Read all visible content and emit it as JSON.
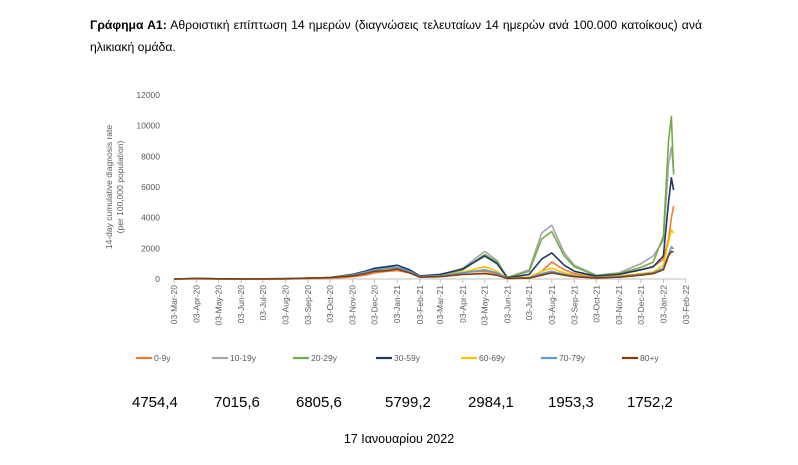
{
  "caption": {
    "label": "Γράφημα Α1:",
    "text": "Αθροιστική επίπτωση 14 ημερών (διαγνώσεις τελευταίων 14 ημερών ανά 100.000 κατοίκους) ανά ηλικιακή ομάδα."
  },
  "stats": [
    "4754,4",
    "7015,6",
    "6805,6",
    "5799,2",
    "2984,1",
    "1953,3",
    "1752,2"
  ],
  "footer": "17 Ιανουαρίου 2022",
  "chart_data": {
    "type": "line",
    "title": "",
    "xlabel": "",
    "ylabel": "14-day cumulative diagnosis rate (per 100,000 population)",
    "ylabel_lines": [
      "14-day cumulative diagnosis rate",
      "(per 100,000 population)"
    ],
    "ylim": [
      0,
      12000
    ],
    "yticks": [
      0,
      2000,
      4000,
      6000,
      8000,
      10000,
      12000
    ],
    "x_tick_labels": [
      "03-Mar-20",
      "03-Apr-20",
      "03-May-20",
      "03-Jun-20",
      "03-Jul-20",
      "03-Aug-20",
      "03-Sep-20",
      "03-Oct-20",
      "03-Nov-20",
      "03-Dec-20",
      "03-Jan-21",
      "03-Feb-21",
      "03-Mar-21",
      "03-Apr-21",
      "03-May-21",
      "03-Jun-21",
      "03-Jul-21",
      "03-Aug-21",
      "03-Sep-21",
      "03-Oct-21",
      "03-Nov-21",
      "03-Dec-21",
      "03-Jan-22",
      "03-Feb-22"
    ],
    "grid": false,
    "legend_position": "bottom",
    "x": [
      "03-Mar-20",
      "03-Apr-20",
      "03-May-20",
      "03-Jun-20",
      "03-Jul-20",
      "03-Aug-20",
      "03-Sep-20",
      "03-Oct-20",
      "03-Nov-20",
      "20-Nov-20",
      "03-Dec-20",
      "20-Dec-20",
      "03-Jan-21",
      "20-Jan-21",
      "03-Feb-21",
      "03-Mar-21",
      "03-Apr-21",
      "03-May-21",
      "20-May-21",
      "03-Jun-21",
      "03-Jul-21",
      "20-Jul-21",
      "03-Aug-21",
      "20-Aug-21",
      "03-Sep-21",
      "03-Oct-21",
      "03-Nov-21",
      "03-Dec-21",
      "20-Dec-21",
      "03-Jan-22",
      "10-Jan-22",
      "14-Jan-22",
      "17-Jan-22"
    ],
    "series": [
      {
        "name": "0-9y",
        "color": "#ED7D31",
        "values": [
          0,
          10,
          5,
          5,
          5,
          10,
          20,
          40,
          150,
          250,
          400,
          500,
          550,
          400,
          150,
          200,
          450,
          500,
          350,
          50,
          100,
          500,
          1100,
          600,
          350,
          120,
          300,
          600,
          800,
          1300,
          2600,
          4000,
          4754
        ]
      },
      {
        "name": "10-19y",
        "color": "#A5A5A5",
        "values": [
          0,
          20,
          10,
          5,
          10,
          20,
          40,
          70,
          250,
          450,
          700,
          800,
          750,
          500,
          180,
          250,
          700,
          1800,
          1200,
          100,
          600,
          3000,
          3500,
          1700,
          900,
          250,
          400,
          1000,
          1500,
          2500,
          7500,
          8600,
          7016
        ]
      },
      {
        "name": "20-29y",
        "color": "#70AD47",
        "values": [
          0,
          30,
          15,
          5,
          10,
          30,
          60,
          90,
          300,
          500,
          650,
          700,
          700,
          500,
          170,
          250,
          600,
          1600,
          1100,
          100,
          500,
          2600,
          3100,
          1500,
          800,
          220,
          350,
          750,
          1100,
          2800,
          9000,
          10600,
          6806
        ]
      },
      {
        "name": "30-59y",
        "color": "#1F3864",
        "values": [
          0,
          40,
          15,
          5,
          10,
          20,
          50,
          100,
          300,
          500,
          700,
          800,
          900,
          600,
          200,
          300,
          650,
          1500,
          1000,
          80,
          300,
          1300,
          1700,
          900,
          500,
          180,
          300,
          600,
          800,
          1500,
          5000,
          6600,
          5799
        ]
      },
      {
        "name": "60-69y",
        "color": "#FFC000",
        "values": [
          0,
          20,
          10,
          5,
          5,
          15,
          40,
          80,
          250,
          400,
          550,
          650,
          700,
          450,
          150,
          200,
          450,
          800,
          500,
          40,
          120,
          500,
          700,
          400,
          250,
          100,
          200,
          350,
          450,
          900,
          2400,
          3200,
          2984
        ]
      },
      {
        "name": "70-79y",
        "color": "#5B9BD5",
        "values": [
          0,
          20,
          10,
          5,
          5,
          15,
          40,
          80,
          250,
          450,
          600,
          700,
          750,
          500,
          150,
          200,
          400,
          600,
          400,
          30,
          80,
          350,
          500,
          300,
          200,
          80,
          150,
          300,
          400,
          700,
          1600,
          2100,
          1953
        ]
      },
      {
        "name": "80+y",
        "color": "#843C0C",
        "values": [
          0,
          30,
          10,
          5,
          5,
          15,
          50,
          90,
          200,
          350,
          500,
          550,
          650,
          400,
          120,
          150,
          300,
          350,
          250,
          30,
          60,
          250,
          400,
          250,
          150,
          60,
          120,
          250,
          350,
          600,
          1500,
          1800,
          1752
        ]
      }
    ]
  }
}
